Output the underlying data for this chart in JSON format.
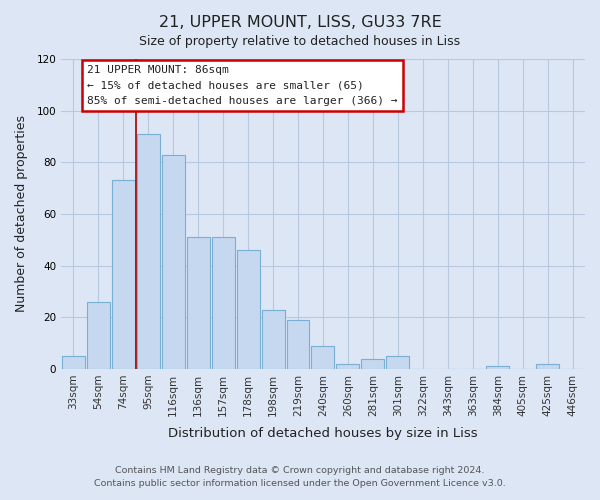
{
  "title": "21, UPPER MOUNT, LISS, GU33 7RE",
  "subtitle": "Size of property relative to detached houses in Liss",
  "xlabel": "Distribution of detached houses by size in Liss",
  "ylabel": "Number of detached properties",
  "categories": [
    "33sqm",
    "54sqm",
    "74sqm",
    "95sqm",
    "116sqm",
    "136sqm",
    "157sqm",
    "178sqm",
    "198sqm",
    "219sqm",
    "240sqm",
    "260sqm",
    "281sqm",
    "301sqm",
    "322sqm",
    "343sqm",
    "363sqm",
    "384sqm",
    "405sqm",
    "425sqm",
    "446sqm"
  ],
  "values": [
    5,
    26,
    73,
    91,
    83,
    51,
    51,
    46,
    23,
    19,
    9,
    2,
    4,
    5,
    0,
    0,
    0,
    1,
    0,
    2,
    0
  ],
  "bar_color": "#c5d8f0",
  "bar_edge_color": "#7aafd4",
  "ylim": [
    0,
    120
  ],
  "yticks": [
    0,
    20,
    40,
    60,
    80,
    100,
    120
  ],
  "annotation_title": "21 UPPER MOUNT: 86sqm",
  "annotation_line1": "← 15% of detached houses are smaller (65)",
  "annotation_line2": "85% of semi-detached houses are larger (366) →",
  "annotation_box_color": "#ffffff",
  "annotation_box_edge_color": "#cc0000",
  "marker_line_color": "#aa0000",
  "footer1": "Contains HM Land Registry data © Crown copyright and database right 2024.",
  "footer2": "Contains public sector information licensed under the Open Government Licence v3.0.",
  "background_color": "#dce6f5",
  "plot_background_color": "#dce6f5",
  "grid_color": "#b8c8e0"
}
